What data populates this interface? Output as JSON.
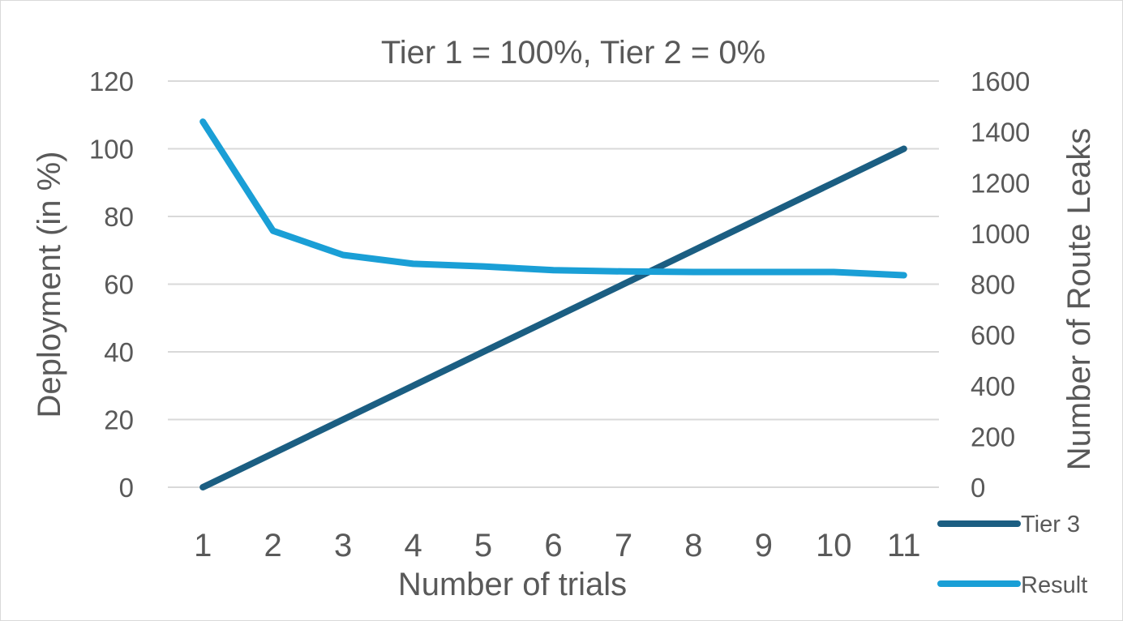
{
  "chart_data": {
    "type": "line",
    "title": "Tier 1 = 100%, Tier 2 = 0%",
    "xlabel": "Number of trials",
    "ylabel_left": "Deployment (in %)",
    "ylabel_right": "Number of Route Leaks",
    "categories": [
      "1",
      "2",
      "3",
      "4",
      "5",
      "6",
      "7",
      "8",
      "9",
      "10",
      "11"
    ],
    "y_left": {
      "min": 0,
      "max": 120,
      "ticks": [
        "0",
        "20",
        "40",
        "60",
        "80",
        "100",
        "120"
      ]
    },
    "y_right": {
      "min": 0,
      "max": 1600,
      "ticks": [
        "0",
        "200",
        "400",
        "600",
        "800",
        "1000",
        "1200",
        "1400",
        "1600"
      ]
    },
    "grid": true,
    "legend_position": "bottom-right",
    "series": [
      {
        "name": "Tier 3",
        "axis": "left",
        "color": "#1b5e82",
        "values": [
          0,
          10,
          20,
          30,
          40,
          50,
          60,
          70,
          80,
          90,
          100
        ]
      },
      {
        "name": "Result",
        "axis": "right",
        "color": "#1a9fd6",
        "values": [
          1440,
          1010,
          915,
          880,
          870,
          855,
          850,
          848,
          848,
          848,
          835
        ]
      }
    ]
  }
}
